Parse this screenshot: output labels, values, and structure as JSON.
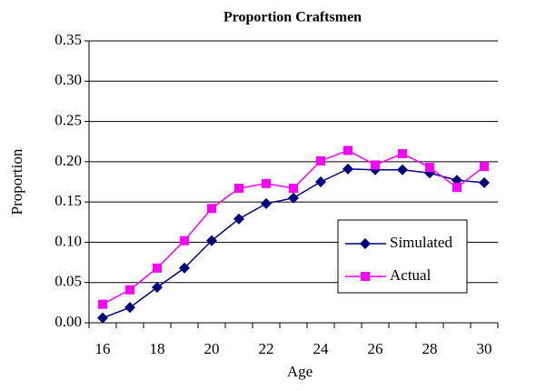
{
  "chart_data": {
    "type": "line",
    "title": "Proportion Craftsmen",
    "x_label": "Age",
    "y_label": "Proportion",
    "categories": [
      16,
      null,
      18,
      null,
      20,
      null,
      22,
      null,
      24,
      null,
      26,
      null,
      28,
      null,
      30
    ],
    "series": [
      {
        "name": "Simulated",
        "color": "#000080",
        "marker": "diamond",
        "values": [
          0.006,
          0.019,
          0.044,
          0.068,
          0.102,
          0.129,
          0.148,
          0.155,
          0.175,
          0.191,
          0.19,
          0.19,
          0.186,
          0.177,
          0.174
        ]
      },
      {
        "name": "Actual",
        "color": "#ff00ff",
        "marker": "square",
        "values": [
          0.023,
          0.041,
          0.068,
          0.102,
          0.142,
          0.167,
          0.173,
          0.167,
          0.201,
          0.214,
          0.196,
          0.21,
          0.193,
          0.168,
          0.194
        ]
      }
    ],
    "ylim": [
      0,
      0.35
    ],
    "yticks": [
      {
        "value": 0,
        "label": "0.00"
      },
      0.05,
      {
        "value": 0.1,
        "label": "0.10"
      },
      0.15,
      {
        "value": 0.2,
        "label": "0.20"
      },
      0.25,
      {
        "value": 0.3,
        "label": "0.30"
      },
      0.35
    ],
    "grid": true
  }
}
